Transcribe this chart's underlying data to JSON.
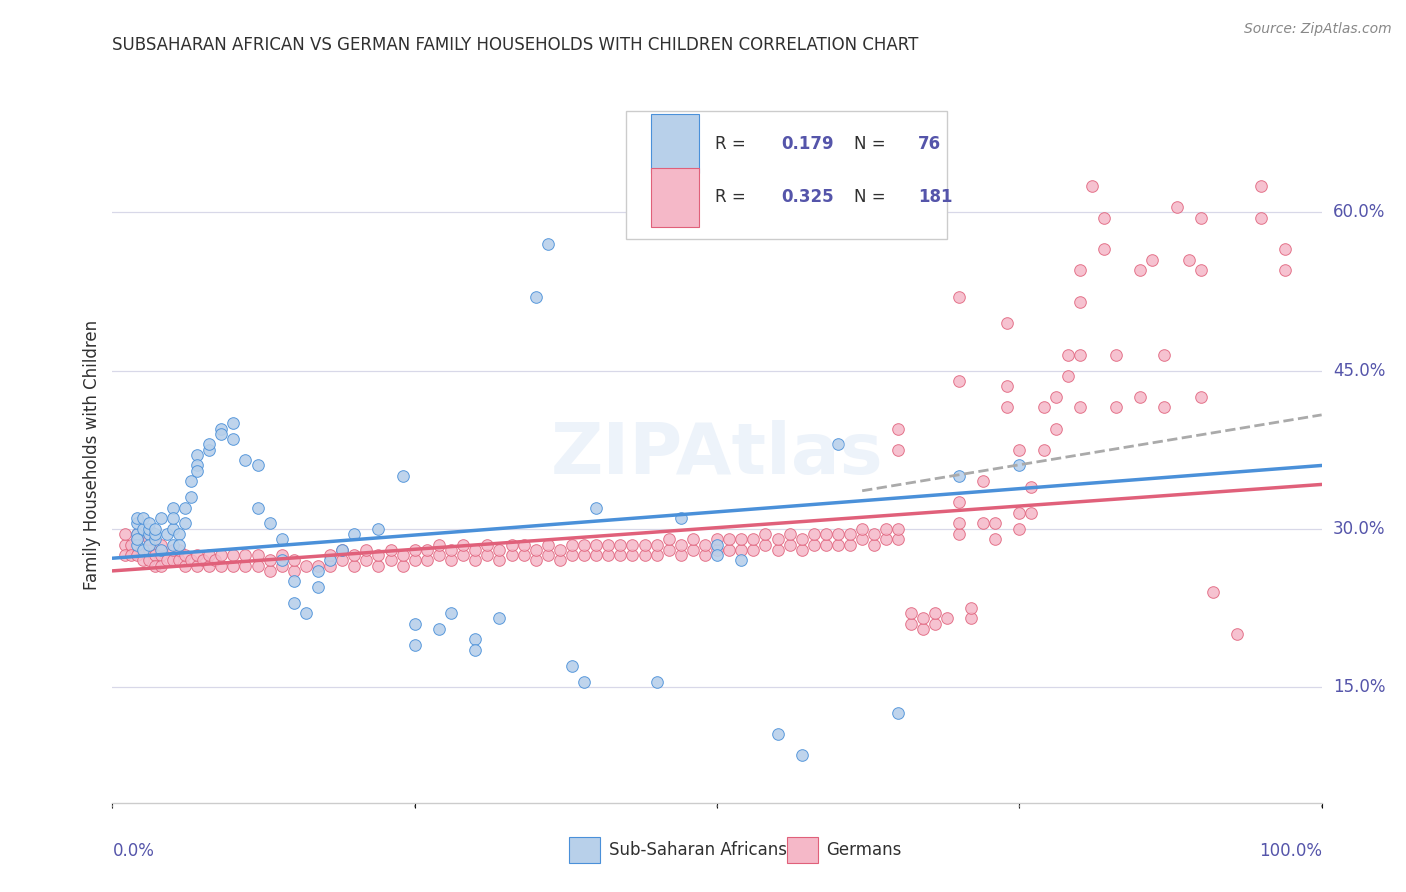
{
  "title": "SUBSAHARAN AFRICAN VS GERMAN FAMILY HOUSEHOLDS WITH CHILDREN CORRELATION CHART",
  "source": "Source: ZipAtlas.com",
  "ylabel": "Family Households with Children",
  "yticks": [
    0.15,
    0.3,
    0.45,
    0.6
  ],
  "ytick_labels": [
    "15.0%",
    "30.0%",
    "45.0%",
    "60.0%"
  ],
  "xlim": [
    0.0,
    1.0
  ],
  "ylim": [
    0.04,
    0.7
  ],
  "color_blue": "#b8d0ea",
  "color_pink": "#f5b8c8",
  "line_blue": "#4a90d9",
  "line_pink": "#e0607a",
  "line_dashed": "#aaaaaa",
  "background": "#ffffff",
  "grid_color": "#d8d8e8",
  "title_color": "#303030",
  "source_color": "#888888",
  "axis_label_color": "#5555aa",
  "blue_scatter": [
    [
      0.02,
      0.295
    ],
    [
      0.02,
      0.285
    ],
    [
      0.02,
      0.305
    ],
    [
      0.02,
      0.31
    ],
    [
      0.02,
      0.29
    ],
    [
      0.025,
      0.28
    ],
    [
      0.025,
      0.3
    ],
    [
      0.025,
      0.31
    ],
    [
      0.03,
      0.295
    ],
    [
      0.03,
      0.3
    ],
    [
      0.03,
      0.305
    ],
    [
      0.03,
      0.285
    ],
    [
      0.035,
      0.29
    ],
    [
      0.035,
      0.295
    ],
    [
      0.035,
      0.3
    ],
    [
      0.04,
      0.28
    ],
    [
      0.04,
      0.31
    ],
    [
      0.045,
      0.295
    ],
    [
      0.05,
      0.285
    ],
    [
      0.05,
      0.3
    ],
    [
      0.05,
      0.32
    ],
    [
      0.05,
      0.31
    ],
    [
      0.055,
      0.295
    ],
    [
      0.055,
      0.285
    ],
    [
      0.06,
      0.305
    ],
    [
      0.06,
      0.32
    ],
    [
      0.065,
      0.33
    ],
    [
      0.065,
      0.345
    ],
    [
      0.07,
      0.37
    ],
    [
      0.07,
      0.36
    ],
    [
      0.07,
      0.355
    ],
    [
      0.08,
      0.375
    ],
    [
      0.08,
      0.38
    ],
    [
      0.09,
      0.395
    ],
    [
      0.09,
      0.39
    ],
    [
      0.1,
      0.4
    ],
    [
      0.1,
      0.385
    ],
    [
      0.11,
      0.365
    ],
    [
      0.12,
      0.36
    ],
    [
      0.12,
      0.32
    ],
    [
      0.13,
      0.305
    ],
    [
      0.14,
      0.29
    ],
    [
      0.14,
      0.27
    ],
    [
      0.15,
      0.25
    ],
    [
      0.15,
      0.23
    ],
    [
      0.16,
      0.22
    ],
    [
      0.17,
      0.245
    ],
    [
      0.17,
      0.26
    ],
    [
      0.18,
      0.27
    ],
    [
      0.19,
      0.28
    ],
    [
      0.2,
      0.295
    ],
    [
      0.22,
      0.3
    ],
    [
      0.24,
      0.35
    ],
    [
      0.25,
      0.19
    ],
    [
      0.25,
      0.21
    ],
    [
      0.27,
      0.205
    ],
    [
      0.28,
      0.22
    ],
    [
      0.3,
      0.195
    ],
    [
      0.3,
      0.185
    ],
    [
      0.32,
      0.215
    ],
    [
      0.35,
      0.52
    ],
    [
      0.36,
      0.57
    ],
    [
      0.38,
      0.17
    ],
    [
      0.39,
      0.155
    ],
    [
      0.4,
      0.32
    ],
    [
      0.45,
      0.155
    ],
    [
      0.47,
      0.31
    ],
    [
      0.5,
      0.285
    ],
    [
      0.5,
      0.275
    ],
    [
      0.52,
      0.27
    ],
    [
      0.55,
      0.105
    ],
    [
      0.57,
      0.085
    ],
    [
      0.6,
      0.38
    ],
    [
      0.65,
      0.125
    ],
    [
      0.7,
      0.35
    ],
    [
      0.75,
      0.36
    ]
  ],
  "pink_scatter": [
    [
      0.01,
      0.285
    ],
    [
      0.01,
      0.295
    ],
    [
      0.01,
      0.275
    ],
    [
      0.015,
      0.285
    ],
    [
      0.015,
      0.275
    ],
    [
      0.02,
      0.29
    ],
    [
      0.02,
      0.275
    ],
    [
      0.02,
      0.295
    ],
    [
      0.025,
      0.28
    ],
    [
      0.025,
      0.27
    ],
    [
      0.03,
      0.28
    ],
    [
      0.03,
      0.27
    ],
    [
      0.03,
      0.29
    ],
    [
      0.035,
      0.275
    ],
    [
      0.035,
      0.265
    ],
    [
      0.04,
      0.275
    ],
    [
      0.04,
      0.265
    ],
    [
      0.04,
      0.285
    ],
    [
      0.045,
      0.27
    ],
    [
      0.05,
      0.27
    ],
    [
      0.05,
      0.28
    ],
    [
      0.055,
      0.27
    ],
    [
      0.055,
      0.28
    ],
    [
      0.06,
      0.265
    ],
    [
      0.06,
      0.275
    ],
    [
      0.065,
      0.27
    ],
    [
      0.07,
      0.265
    ],
    [
      0.07,
      0.275
    ],
    [
      0.075,
      0.27
    ],
    [
      0.08,
      0.265
    ],
    [
      0.08,
      0.275
    ],
    [
      0.085,
      0.27
    ],
    [
      0.09,
      0.265
    ],
    [
      0.09,
      0.275
    ],
    [
      0.1,
      0.265
    ],
    [
      0.1,
      0.275
    ],
    [
      0.11,
      0.265
    ],
    [
      0.11,
      0.275
    ],
    [
      0.12,
      0.265
    ],
    [
      0.12,
      0.275
    ],
    [
      0.13,
      0.26
    ],
    [
      0.13,
      0.27
    ],
    [
      0.14,
      0.265
    ],
    [
      0.14,
      0.275
    ],
    [
      0.15,
      0.26
    ],
    [
      0.15,
      0.27
    ],
    [
      0.16,
      0.265
    ],
    [
      0.17,
      0.265
    ],
    [
      0.18,
      0.265
    ],
    [
      0.18,
      0.275
    ],
    [
      0.19,
      0.27
    ],
    [
      0.19,
      0.28
    ],
    [
      0.2,
      0.265
    ],
    [
      0.2,
      0.275
    ],
    [
      0.21,
      0.27
    ],
    [
      0.21,
      0.28
    ],
    [
      0.22,
      0.265
    ],
    [
      0.22,
      0.275
    ],
    [
      0.23,
      0.27
    ],
    [
      0.23,
      0.28
    ],
    [
      0.24,
      0.265
    ],
    [
      0.24,
      0.275
    ],
    [
      0.25,
      0.27
    ],
    [
      0.25,
      0.28
    ],
    [
      0.26,
      0.27
    ],
    [
      0.26,
      0.28
    ],
    [
      0.27,
      0.275
    ],
    [
      0.27,
      0.285
    ],
    [
      0.28,
      0.27
    ],
    [
      0.28,
      0.28
    ],
    [
      0.29,
      0.275
    ],
    [
      0.29,
      0.285
    ],
    [
      0.3,
      0.27
    ],
    [
      0.3,
      0.28
    ],
    [
      0.31,
      0.275
    ],
    [
      0.31,
      0.285
    ],
    [
      0.32,
      0.27
    ],
    [
      0.32,
      0.28
    ],
    [
      0.33,
      0.275
    ],
    [
      0.33,
      0.285
    ],
    [
      0.34,
      0.275
    ],
    [
      0.34,
      0.285
    ],
    [
      0.35,
      0.27
    ],
    [
      0.35,
      0.28
    ],
    [
      0.36,
      0.275
    ],
    [
      0.36,
      0.285
    ],
    [
      0.37,
      0.27
    ],
    [
      0.37,
      0.28
    ],
    [
      0.38,
      0.275
    ],
    [
      0.38,
      0.285
    ],
    [
      0.39,
      0.275
    ],
    [
      0.39,
      0.285
    ],
    [
      0.4,
      0.275
    ],
    [
      0.4,
      0.285
    ],
    [
      0.41,
      0.275
    ],
    [
      0.41,
      0.285
    ],
    [
      0.42,
      0.275
    ],
    [
      0.42,
      0.285
    ],
    [
      0.43,
      0.275
    ],
    [
      0.43,
      0.285
    ],
    [
      0.44,
      0.275
    ],
    [
      0.44,
      0.285
    ],
    [
      0.45,
      0.275
    ],
    [
      0.45,
      0.285
    ],
    [
      0.46,
      0.28
    ],
    [
      0.46,
      0.29
    ],
    [
      0.47,
      0.275
    ],
    [
      0.47,
      0.285
    ],
    [
      0.48,
      0.28
    ],
    [
      0.48,
      0.29
    ],
    [
      0.49,
      0.275
    ],
    [
      0.49,
      0.285
    ],
    [
      0.5,
      0.28
    ],
    [
      0.5,
      0.29
    ],
    [
      0.51,
      0.28
    ],
    [
      0.51,
      0.29
    ],
    [
      0.52,
      0.28
    ],
    [
      0.52,
      0.29
    ],
    [
      0.53,
      0.28
    ],
    [
      0.53,
      0.29
    ],
    [
      0.54,
      0.285
    ],
    [
      0.54,
      0.295
    ],
    [
      0.55,
      0.28
    ],
    [
      0.55,
      0.29
    ],
    [
      0.56,
      0.285
    ],
    [
      0.56,
      0.295
    ],
    [
      0.57,
      0.28
    ],
    [
      0.57,
      0.29
    ],
    [
      0.58,
      0.285
    ],
    [
      0.58,
      0.295
    ],
    [
      0.59,
      0.285
    ],
    [
      0.59,
      0.295
    ],
    [
      0.6,
      0.285
    ],
    [
      0.6,
      0.295
    ],
    [
      0.61,
      0.285
    ],
    [
      0.61,
      0.295
    ],
    [
      0.62,
      0.29
    ],
    [
      0.62,
      0.3
    ],
    [
      0.63,
      0.285
    ],
    [
      0.63,
      0.295
    ],
    [
      0.64,
      0.29
    ],
    [
      0.64,
      0.3
    ],
    [
      0.65,
      0.29
    ],
    [
      0.65,
      0.3
    ],
    [
      0.65,
      0.375
    ],
    [
      0.65,
      0.395
    ],
    [
      0.66,
      0.21
    ],
    [
      0.66,
      0.22
    ],
    [
      0.67,
      0.205
    ],
    [
      0.67,
      0.215
    ],
    [
      0.68,
      0.21
    ],
    [
      0.68,
      0.22
    ],
    [
      0.69,
      0.215
    ],
    [
      0.7,
      0.295
    ],
    [
      0.7,
      0.305
    ],
    [
      0.7,
      0.325
    ],
    [
      0.7,
      0.44
    ],
    [
      0.7,
      0.52
    ],
    [
      0.71,
      0.215
    ],
    [
      0.71,
      0.225
    ],
    [
      0.72,
      0.305
    ],
    [
      0.72,
      0.345
    ],
    [
      0.73,
      0.29
    ],
    [
      0.73,
      0.305
    ],
    [
      0.74,
      0.415
    ],
    [
      0.74,
      0.435
    ],
    [
      0.74,
      0.495
    ],
    [
      0.75,
      0.3
    ],
    [
      0.75,
      0.315
    ],
    [
      0.75,
      0.375
    ],
    [
      0.76,
      0.315
    ],
    [
      0.76,
      0.34
    ],
    [
      0.77,
      0.375
    ],
    [
      0.77,
      0.415
    ],
    [
      0.78,
      0.395
    ],
    [
      0.78,
      0.425
    ],
    [
      0.79,
      0.445
    ],
    [
      0.79,
      0.465
    ],
    [
      0.8,
      0.415
    ],
    [
      0.8,
      0.465
    ],
    [
      0.8,
      0.515
    ],
    [
      0.8,
      0.545
    ],
    [
      0.81,
      0.625
    ],
    [
      0.82,
      0.565
    ],
    [
      0.82,
      0.595
    ],
    [
      0.83,
      0.415
    ],
    [
      0.83,
      0.465
    ],
    [
      0.85,
      0.425
    ],
    [
      0.85,
      0.545
    ],
    [
      0.86,
      0.555
    ],
    [
      0.87,
      0.415
    ],
    [
      0.87,
      0.465
    ],
    [
      0.88,
      0.605
    ],
    [
      0.89,
      0.555
    ],
    [
      0.9,
      0.425
    ],
    [
      0.9,
      0.545
    ],
    [
      0.9,
      0.595
    ],
    [
      0.91,
      0.24
    ],
    [
      0.93,
      0.2
    ],
    [
      0.95,
      0.595
    ],
    [
      0.95,
      0.625
    ],
    [
      0.97,
      0.545
    ],
    [
      0.97,
      0.565
    ]
  ],
  "blue_line": [
    [
      0.0,
      0.272
    ],
    [
      1.0,
      0.36
    ]
  ],
  "pink_line": [
    [
      0.0,
      0.26
    ],
    [
      1.0,
      0.342
    ]
  ],
  "dash_line": [
    [
      0.62,
      0.336
    ],
    [
      1.0,
      0.408
    ]
  ]
}
